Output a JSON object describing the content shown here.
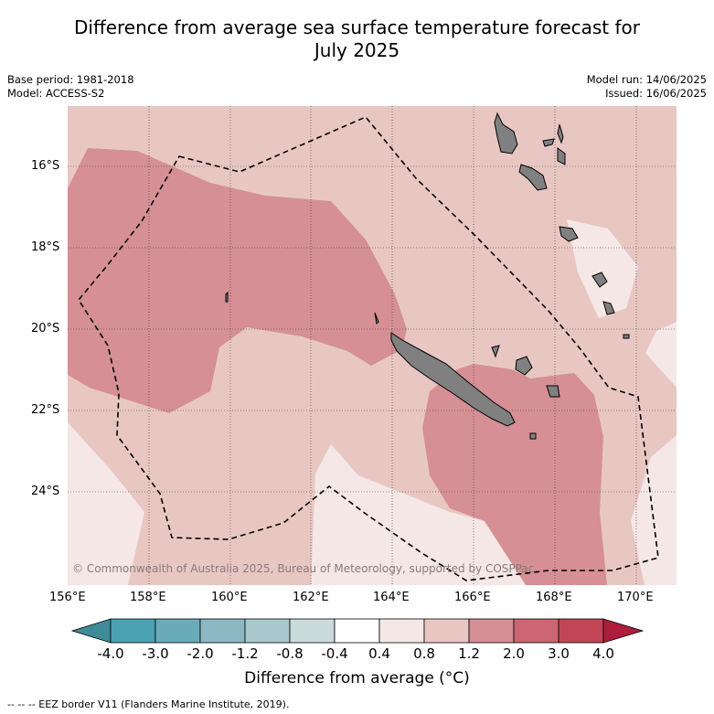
{
  "title_line1": "Difference from average sea surface temperature forecast for",
  "title_line2": "July 2025",
  "base_period": "Base period: 1981-2018",
  "model": "Model: ACCESS-S2",
  "model_run": "Model run: 14/06/2025",
  "issued": "Issued: 16/06/2025",
  "copyright": "© Commonwealth of Australia 2025, Bureau of Meteorology, supported by COSPPac",
  "lat_labels": [
    "16°S",
    "18°S",
    "20°S",
    "22°S",
    "24°S"
  ],
  "lon_labels": [
    "156°E",
    "158°E",
    "160°E",
    "162°E",
    "164°E",
    "166°E",
    "168°E",
    "170°E"
  ],
  "colorbar": {
    "title": "Difference from average (°C)",
    "tick_labels": [
      "-4.0",
      "-3.0",
      "-2.0",
      "-1.2",
      "-0.8",
      "-0.4",
      "0.4",
      "0.8",
      "1.2",
      "2.0",
      "3.0",
      "4.0"
    ],
    "colors": [
      "#3f8b98",
      "#4aa2b0",
      "#6aabb9",
      "#8cb8c4",
      "#a9c8cd",
      "#cadadb",
      "#ffffff",
      "#f5e7e6",
      "#e8c7c3",
      "#d58f95",
      "#cc6672",
      "#c24556",
      "#ae1e3c"
    ]
  },
  "legend_footnote": "--  --  -- EEZ border V11 (Flanders Marine Institute, 2019).",
  "map_colors": {
    "band_0_4_0_8": "#f5e7e6",
    "band_0_8_1_2": "#e8c7c3",
    "band_1_2_2_0": "#d58f95",
    "land": "#808080"
  }
}
